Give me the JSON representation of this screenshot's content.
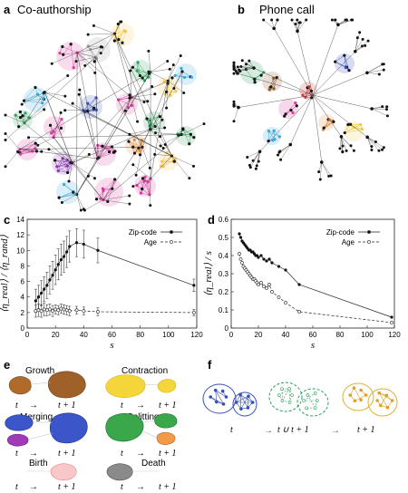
{
  "panels": {
    "a": {
      "letter": "a",
      "title": "Co-authorship"
    },
    "b": {
      "letter": "b",
      "title": "Phone call"
    },
    "c": {
      "letter": "c"
    },
    "d": {
      "letter": "d"
    },
    "e": {
      "letter": "e"
    },
    "f": {
      "letter": "f"
    }
  },
  "colors": {
    "pink": "#d63a9a",
    "green": "#2aa05a",
    "blue": "#3550b8",
    "cyan": "#3aa6d8",
    "yellow": "#f2c94c",
    "orange": "#e08a3a",
    "brown": "#8a5a2b",
    "gray": "#9a9a9a",
    "purple": "#8a3ab0",
    "red": "#d23a3a",
    "node": "#111111"
  },
  "chart_data": [
    {
      "panel": "c",
      "type": "line",
      "xlabel": "s",
      "ylabel": "⟨η_real⟩ / ⟨η_rand⟩",
      "xlim": [
        0,
        120
      ],
      "ylim": [
        0,
        14
      ],
      "xticks": [
        0,
        20,
        40,
        60,
        80,
        100,
        120
      ],
      "yticks": [
        0,
        2,
        4,
        6,
        8,
        10,
        12,
        14
      ],
      "legend_position": "top-right",
      "series": [
        {
          "name": "Zip-code",
          "style": "solid-dots",
          "x": [
            6,
            8,
            10,
            12,
            14,
            16,
            18,
            20,
            22,
            24,
            26,
            28,
            30,
            35,
            40,
            50,
            118
          ],
          "y": [
            3.5,
            4.0,
            4.5,
            5.0,
            5.5,
            6.2,
            6.8,
            7.5,
            8.2,
            8.8,
            9.2,
            9.8,
            10.5,
            11.0,
            10.8,
            10.0,
            5.5
          ],
          "err": [
            1.5,
            1.5,
            1.6,
            1.6,
            1.7,
            1.8,
            1.8,
            1.9,
            2.0,
            2.0,
            2.0,
            2.0,
            2.0,
            1.8,
            1.8,
            1.6,
            0.8
          ]
        },
        {
          "name": "Age",
          "style": "dashed-circles",
          "x": [
            6,
            8,
            10,
            12,
            14,
            16,
            18,
            20,
            22,
            24,
            26,
            28,
            30,
            35,
            40,
            50,
            118
          ],
          "y": [
            2.2,
            2.3,
            2.2,
            2.4,
            2.3,
            2.4,
            2.2,
            2.4,
            2.3,
            2.5,
            2.4,
            2.3,
            2.2,
            2.3,
            2.2,
            2.1,
            2.0
          ],
          "err": [
            0.8,
            0.8,
            0.8,
            0.8,
            0.7,
            0.7,
            0.7,
            0.6,
            0.6,
            0.6,
            0.6,
            0.6,
            0.6,
            0.5,
            0.5,
            0.5,
            0.4
          ]
        }
      ]
    },
    {
      "panel": "d",
      "type": "line",
      "xlabel": "s",
      "ylabel": "⟨η_real⟩ / s",
      "xlim": [
        0,
        120
      ],
      "ylim": [
        0,
        0.6
      ],
      "xticks": [
        0,
        20,
        40,
        60,
        80,
        100,
        120
      ],
      "yticks": [
        0,
        0.1,
        0.2,
        0.3,
        0.4,
        0.5,
        0.6
      ],
      "ytick_labels": [
        "0",
        "0.1",
        "0.2",
        "0.3",
        "0.4",
        "0.5",
        "0.6"
      ],
      "legend_position": "top-right",
      "series": [
        {
          "name": "Zip-code",
          "style": "solid-dots",
          "x": [
            6,
            7,
            8,
            9,
            10,
            11,
            12,
            13,
            14,
            15,
            16,
            17,
            18,
            19,
            20,
            22,
            24,
            26,
            28,
            30,
            35,
            40,
            50,
            118
          ],
          "y": [
            0.52,
            0.5,
            0.48,
            0.47,
            0.46,
            0.45,
            0.44,
            0.43,
            0.43,
            0.42,
            0.42,
            0.41,
            0.4,
            0.4,
            0.39,
            0.4,
            0.38,
            0.37,
            0.38,
            0.36,
            0.34,
            0.32,
            0.24,
            0.06
          ]
        },
        {
          "name": "Age",
          "style": "dashed-circles",
          "x": [
            6,
            7,
            8,
            9,
            10,
            11,
            12,
            13,
            14,
            15,
            16,
            17,
            18,
            19,
            20,
            22,
            24,
            26,
            28,
            30,
            35,
            40,
            50,
            118
          ],
          "y": [
            0.41,
            0.38,
            0.36,
            0.34,
            0.33,
            0.32,
            0.31,
            0.3,
            0.29,
            0.28,
            0.27,
            0.27,
            0.26,
            0.25,
            0.24,
            0.25,
            0.23,
            0.22,
            0.24,
            0.2,
            0.17,
            0.14,
            0.09,
            0.03
          ]
        }
      ]
    }
  ],
  "events": {
    "growth": "Growth",
    "contraction": "Contraction",
    "merging": "Merging",
    "splitting": "Splitting",
    "birth": "Birth",
    "death": "Death",
    "t": "t",
    "t_plus_1": "t + 1",
    "t_union": "t ∪ t + 1"
  }
}
